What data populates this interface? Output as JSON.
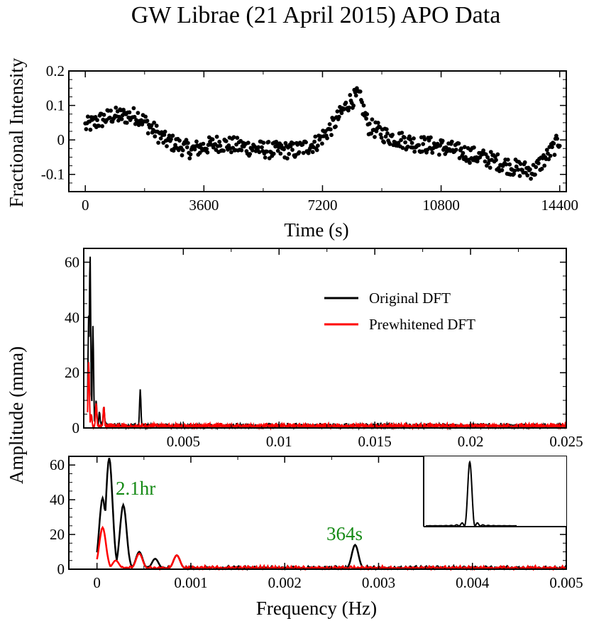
{
  "title": "GW Librae (21 April 2015) APO Data",
  "chart_data": [
    {
      "type": "scatter",
      "name": "light-curve",
      "xlabel": "Time (s)",
      "ylabel": "Fractional Intensity",
      "xlim": [
        -500,
        14600
      ],
      "ylim": [
        -0.15,
        0.2
      ],
      "xticks": [
        0,
        3600,
        7200,
        10800,
        14400
      ],
      "xtick_labels": [
        "0",
        "3600",
        "7200",
        "10800",
        "14400"
      ],
      "yticks": [
        -0.1,
        0,
        0.1,
        0.2
      ],
      "ytick_labels": [
        "-0.1",
        "0",
        "0.1",
        "0.2"
      ],
      "trend": {
        "t": [
          0,
          800,
          1600,
          2400,
          3200,
          4000,
          4800,
          5600,
          6400,
          7000,
          7500,
          8000,
          8300,
          8600,
          9200,
          10000,
          10800,
          11600,
          12400,
          13000,
          13600,
          14000,
          14400
        ],
        "y": [
          0.04,
          0.07,
          0.07,
          0.0,
          -0.03,
          -0.01,
          -0.02,
          -0.03,
          -0.03,
          -0.01,
          0.04,
          0.11,
          0.13,
          0.04,
          0.01,
          -0.01,
          -0.02,
          -0.04,
          -0.06,
          -0.08,
          -0.09,
          -0.05,
          0.0
        ]
      },
      "scatter_amplitude": 0.025,
      "n_points": 560
    },
    {
      "type": "line",
      "name": "dft-full",
      "ylabel": "Amplitude (mma)",
      "xlim": [
        -0.0002,
        0.025
      ],
      "ylim": [
        0,
        65
      ],
      "xticks": [
        0.005,
        0.01,
        0.015,
        0.02,
        0.025
      ],
      "xtick_labels": [
        "0.005",
        "0.01",
        "0.015",
        "0.02",
        "0.025"
      ],
      "yticks": [
        0,
        20,
        40,
        60
      ],
      "ytick_labels": [
        "0",
        "20",
        "40",
        "60"
      ],
      "legend": {
        "position": "top-right",
        "entries": [
          "Original DFT",
          "Prewhitened DFT"
        ]
      },
      "series": [
        {
          "name": "Original DFT",
          "color": "#000000",
          "peaks": [
            [
              6e-05,
              41
            ],
            [
              0.00013,
              64
            ],
            [
              0.00028,
              37
            ],
            [
              0.00045,
              10
            ],
            [
              0.00062,
              6
            ],
            [
              0.00085,
              8
            ],
            [
              0.00275,
              14
            ]
          ],
          "noise": 1.5
        },
        {
          "name": "Prewhitened DFT",
          "color": "#ff0000",
          "peaks": [
            [
              6e-05,
              24
            ],
            [
              0.0002,
              5
            ],
            [
              0.00045,
              9
            ],
            [
              0.00085,
              8
            ]
          ],
          "noise": 1.5
        }
      ]
    },
    {
      "type": "line",
      "name": "dft-zoom",
      "xlabel": "Frequency (Hz)",
      "xlim": [
        -0.0003,
        0.005
      ],
      "ylim": [
        0,
        65
      ],
      "xticks": [
        0,
        0.001,
        0.002,
        0.003,
        0.004,
        0.005
      ],
      "xtick_labels": [
        "0",
        "0.001",
        "0.002",
        "0.003",
        "0.004",
        "0.005"
      ],
      "yticks": [
        0,
        20,
        40,
        60
      ],
      "ytick_labels": [
        "0",
        "20",
        "40",
        "60"
      ],
      "annotations": [
        {
          "text": "2.1hr",
          "x": 0.00013,
          "y": 64
        },
        {
          "text": "364s",
          "x": 0.00275,
          "y": 14
        }
      ],
      "inset": {
        "description": "spectral window",
        "peak": 1.0,
        "sidelobes": 8
      },
      "series": [
        {
          "name": "Original DFT",
          "color": "#000000",
          "peaks": [
            [
              6e-05,
              41
            ],
            [
              0.00013,
              64
            ],
            [
              0.00028,
              37
            ],
            [
              0.00045,
              10
            ],
            [
              0.00062,
              6
            ],
            [
              0.00085,
              8
            ],
            [
              0.00275,
              14
            ]
          ],
          "noise": 1.5
        },
        {
          "name": "Prewhitened DFT",
          "color": "#ff0000",
          "peaks": [
            [
              6e-05,
              24
            ],
            [
              0.0002,
              5
            ],
            [
              0.00045,
              9
            ],
            [
              0.00085,
              8
            ]
          ],
          "noise": 1.5
        }
      ]
    }
  ],
  "colors": {
    "original": "#000000",
    "prewhitened": "#ff0000",
    "annotation": "#158a15"
  }
}
